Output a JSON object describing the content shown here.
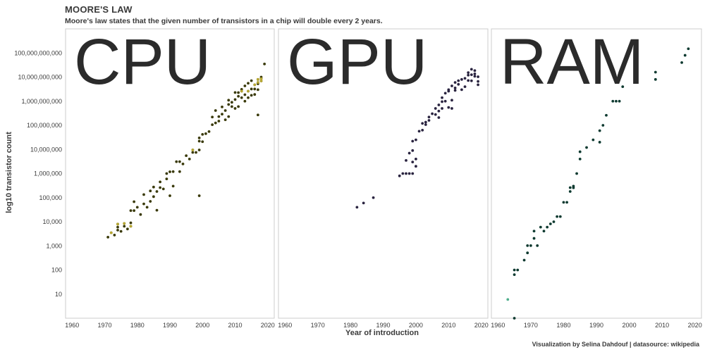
{
  "header": {
    "title": "MOORE'S LAW",
    "subtitle": "Moore's law states that the given number of transistors in a chip will double every 2 years."
  },
  "footer": {
    "credit": "Visualization by Selina Dahdouf | datasource: wikipedia"
  },
  "chart_data": {
    "type": "scatter",
    "ylabel": "log10 transistor count",
    "xlabel": "Year of introduction",
    "y_scale": "log",
    "ylim": [
      1,
      1000000000000
    ],
    "y_ticks": [
      10,
      100,
      1000,
      10000,
      100000,
      1000000,
      10000000,
      100000000,
      1000000000,
      10000000000,
      100000000000
    ],
    "y_tick_labels": [
      "10",
      "100",
      "1,000",
      "10,000",
      "100,000",
      "1,000,000",
      "10,000,000",
      "100,000,000",
      "1,000,000,000",
      "10,000,000,000",
      "100,000,000,000"
    ],
    "grid": false,
    "colors": {
      "CPU": "#3a3a0a",
      "CPU_highlight": "#b8a832",
      "GPU": "#2a2440",
      "RAM": "#0e3a30",
      "RAM_highlight": "#4fae8c",
      "frame": "#cccccc"
    },
    "panels": [
      {
        "name": "CPU",
        "xlim": [
          1958,
          2022
        ],
        "x_ticks": [
          1960,
          1970,
          1980,
          1990,
          2000,
          2010,
          2020
        ],
        "points": [
          [
            1971,
            2300
          ],
          [
            1972,
            3500
          ],
          [
            1973,
            2800
          ],
          [
            1974,
            4500
          ],
          [
            1974,
            6000
          ],
          [
            1974,
            8000
          ],
          [
            1975,
            4000
          ],
          [
            1976,
            6500
          ],
          [
            1976,
            8500
          ],
          [
            1977,
            5000
          ],
          [
            1978,
            6500
          ],
          [
            1978,
            9000
          ],
          [
            1978,
            29000
          ],
          [
            1979,
            29000
          ],
          [
            1979,
            68000
          ],
          [
            1980,
            40000
          ],
          [
            1981,
            20000
          ],
          [
            1982,
            55000
          ],
          [
            1982,
            134000
          ],
          [
            1983,
            40000
          ],
          [
            1984,
            70000
          ],
          [
            1984,
            190000
          ],
          [
            1985,
            275000
          ],
          [
            1985,
            110000
          ],
          [
            1986,
            30000
          ],
          [
            1986,
            180000
          ],
          [
            1987,
            450000
          ],
          [
            1987,
            260000
          ],
          [
            1988,
            230000
          ],
          [
            1989,
            1000000
          ],
          [
            1989,
            600000
          ],
          [
            1990,
            1180000
          ],
          [
            1990,
            120000
          ],
          [
            1991,
            1200000
          ],
          [
            1991,
            300000
          ],
          [
            1992,
            3100000
          ],
          [
            1993,
            3100000
          ],
          [
            1993,
            1200000
          ],
          [
            1994,
            2500000
          ],
          [
            1995,
            5500000
          ],
          [
            1996,
            4000000
          ],
          [
            1997,
            7500000
          ],
          [
            1997,
            9500000
          ],
          [
            1998,
            7500000
          ],
          [
            1999,
            9500000
          ],
          [
            1999,
            22000000
          ],
          [
            1999,
            30000000
          ],
          [
            1999,
            120000
          ],
          [
            2000,
            42000000
          ],
          [
            2000,
            21000000
          ],
          [
            2001,
            45000000
          ],
          [
            2002,
            55000000
          ],
          [
            2003,
            106000000
          ],
          [
            2003,
            220000000
          ],
          [
            2004,
            125000000
          ],
          [
            2004,
            410000000
          ],
          [
            2005,
            230000000
          ],
          [
            2005,
            150000000
          ],
          [
            2006,
            290000000
          ],
          [
            2006,
            580000000
          ],
          [
            2007,
            410000000
          ],
          [
            2007,
            170000000
          ],
          [
            2008,
            730000000
          ],
          [
            2008,
            230000000
          ],
          [
            2008,
            1100000000
          ],
          [
            2009,
            600000000
          ],
          [
            2009,
            900000000
          ],
          [
            2010,
            1170000000
          ],
          [
            2010,
            2300000000
          ],
          [
            2010,
            500000000
          ],
          [
            2011,
            1600000000
          ],
          [
            2011,
            2270000000
          ],
          [
            2011,
            600000000
          ],
          [
            2012,
            1400000000
          ],
          [
            2012,
            2600000000
          ],
          [
            2012,
            3100000000
          ],
          [
            2013,
            1860000000
          ],
          [
            2013,
            4310000000
          ],
          [
            2013,
            1000000000
          ],
          [
            2014,
            2600000000
          ],
          [
            2014,
            5560000000
          ],
          [
            2014,
            1400000000
          ],
          [
            2015,
            1750000000
          ],
          [
            2015,
            3200000000
          ],
          [
            2015,
            7100000000
          ],
          [
            2016,
            3200000000
          ],
          [
            2016,
            4800000000
          ],
          [
            2016,
            1900000000
          ],
          [
            2017,
            5300000000
          ],
          [
            2017,
            8000000000
          ],
          [
            2017,
            6000000000
          ],
          [
            2017,
            3000000000
          ],
          [
            2017,
            270000000
          ],
          [
            2018,
            6900000000
          ],
          [
            2018,
            8500000000
          ],
          [
            2018,
            10000000000
          ],
          [
            2019,
            35000000000
          ]
        ],
        "highlight_points": [
          [
            1972,
            3500
          ],
          [
            1974,
            8000
          ],
          [
            1976,
            8500
          ],
          [
            1978,
            6500
          ],
          [
            1997,
            9500000
          ],
          [
            2012,
            2600000000
          ],
          [
            2014,
            2600000000
          ],
          [
            2016,
            4800000000
          ],
          [
            2017,
            6000000000
          ],
          [
            2017,
            8000000000
          ],
          [
            2018,
            6900000000
          ],
          [
            2018,
            8500000000
          ]
        ]
      },
      {
        "name": "GPU",
        "xlim": [
          1958,
          2022
        ],
        "x_ticks": [
          1960,
          1970,
          1980,
          1990,
          2000,
          2010,
          2020
        ],
        "points": [
          [
            1982,
            40000
          ],
          [
            1984,
            60000
          ],
          [
            1987,
            100000
          ],
          [
            1995,
            800000
          ],
          [
            1996,
            1000000
          ],
          [
            1997,
            1000000
          ],
          [
            1997,
            3500000
          ],
          [
            1998,
            1000000
          ],
          [
            1998,
            7000000
          ],
          [
            1999,
            1000000
          ],
          [
            1999,
            3000000
          ],
          [
            1999,
            9000000
          ],
          [
            1999,
            22000000
          ],
          [
            2000,
            2000000
          ],
          [
            2000,
            4000000
          ],
          [
            2000,
            25000000
          ],
          [
            2001,
            57000000
          ],
          [
            2002,
            63000000
          ],
          [
            2002,
            120000000
          ],
          [
            2003,
            107000000
          ],
          [
            2003,
            135000000
          ],
          [
            2004,
            160000000
          ],
          [
            2004,
            220000000
          ],
          [
            2005,
            302000000
          ],
          [
            2006,
            500000000
          ],
          [
            2006,
            280000000
          ],
          [
            2007,
            700000000
          ],
          [
            2007,
            390000000
          ],
          [
            2007,
            210000000
          ],
          [
            2008,
            956000000
          ],
          [
            2008,
            500000000
          ],
          [
            2008,
            1400000000
          ],
          [
            2009,
            2150000000
          ],
          [
            2009,
            1000000000
          ],
          [
            2010,
            2600000000
          ],
          [
            2010,
            550000000
          ],
          [
            2010,
            3000000000
          ],
          [
            2011,
            1100000000
          ],
          [
            2011,
            500000000
          ],
          [
            2011,
            4300000000
          ],
          [
            2012,
            3540000000
          ],
          [
            2012,
            2800000000
          ],
          [
            2012,
            6000000000
          ],
          [
            2013,
            7080000000
          ],
          [
            2013,
            5000000000
          ],
          [
            2014,
            3000000000
          ],
          [
            2014,
            8000000000
          ],
          [
            2015,
            8900000000
          ],
          [
            2015,
            4000000000
          ],
          [
            2016,
            15300000000
          ],
          [
            2016,
            12000000000
          ],
          [
            2016,
            7200000000
          ],
          [
            2017,
            21100000000
          ],
          [
            2017,
            12500000000
          ],
          [
            2017,
            7000000000
          ],
          [
            2018,
            18600000000
          ],
          [
            2018,
            13600000000
          ],
          [
            2018,
            10800000000
          ],
          [
            2019,
            10300000000
          ],
          [
            2019,
            6600000000
          ],
          [
            2019,
            4800000000
          ]
        ],
        "highlight_points": []
      },
      {
        "name": "RAM",
        "xlim": [
          1958,
          2022
        ],
        "x_ticks": [
          1960,
          1970,
          1980,
          1990,
          2000,
          2010,
          2020
        ],
        "points": [
          [
            1965,
            1
          ],
          [
            1965,
            64
          ],
          [
            1965,
            100
          ],
          [
            1966,
            100
          ],
          [
            1968,
            256
          ],
          [
            1969,
            1024
          ],
          [
            1969,
            512
          ],
          [
            1970,
            1024
          ],
          [
            1971,
            2048
          ],
          [
            1971,
            4096
          ],
          [
            1972,
            1024
          ],
          [
            1973,
            6000
          ],
          [
            1974,
            4096
          ],
          [
            1975,
            6000
          ],
          [
            1976,
            8192
          ],
          [
            1977,
            10000
          ],
          [
            1978,
            16384
          ],
          [
            1979,
            16384
          ],
          [
            1980,
            64000
          ],
          [
            1981,
            64000
          ],
          [
            1982,
            260000
          ],
          [
            1982,
            180000
          ],
          [
            1983,
            256000
          ],
          [
            1983,
            300000
          ],
          [
            1984,
            1000000
          ],
          [
            1985,
            4000000
          ],
          [
            1985,
            8000000
          ],
          [
            1987,
            12000000
          ],
          [
            1989,
            25000000
          ],
          [
            1991,
            20000000
          ],
          [
            1991,
            60000000
          ],
          [
            1992,
            100000000
          ],
          [
            1993,
            260000000
          ],
          [
            1995,
            1000000000
          ],
          [
            1996,
            1000000000
          ],
          [
            1997,
            1000000000
          ],
          [
            1998,
            4000000000
          ],
          [
            2008,
            8000000000
          ],
          [
            2008,
            16000000000
          ],
          [
            2016,
            40000000000
          ],
          [
            2017,
            80000000000
          ],
          [
            2018,
            150000000000
          ]
        ],
        "highlight_points": [
          [
            1963,
            6
          ]
        ]
      }
    ]
  }
}
